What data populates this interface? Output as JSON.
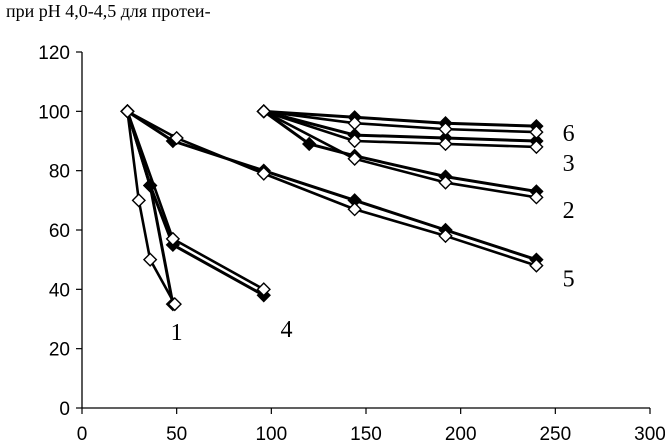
{
  "caption": "при pH  4,0-4,5  для  протеи-",
  "chart_data": {
    "type": "line",
    "title": "",
    "xlabel": "",
    "ylabel": "",
    "xlim": [
      0,
      300
    ],
    "ylim": [
      0,
      120
    ],
    "x_ticks": [
      "0",
      "50",
      "100",
      "150",
      "200",
      "250",
      "300"
    ],
    "y_ticks": [
      "0",
      "20",
      "40",
      "60",
      "80",
      "100",
      "120"
    ],
    "grid": false,
    "legend": "none",
    "marker_colors": {
      "filled": "#000000",
      "open": "#ffffff"
    },
    "series": [
      {
        "label": "1",
        "marker": "filled",
        "x": [
          24,
          36,
          48
        ],
        "y": [
          100,
          75,
          35
        ]
      },
      {
        "label": "1",
        "marker": "open",
        "x": [
          24,
          30,
          36,
          49
        ],
        "y": [
          100,
          70,
          50,
          35
        ]
      },
      {
        "label": "4",
        "marker": "filled",
        "x": [
          24,
          36,
          48,
          96
        ],
        "y": [
          100,
          75,
          55,
          38
        ]
      },
      {
        "label": "4",
        "marker": "open",
        "x": [
          24,
          48,
          96
        ],
        "y": [
          100,
          57,
          40
        ]
      },
      {
        "label": "5",
        "marker": "filled",
        "x": [
          24,
          48,
          96,
          144,
          192,
          240
        ],
        "y": [
          100,
          90,
          80,
          70,
          60,
          50
        ]
      },
      {
        "label": "5",
        "marker": "open",
        "x": [
          24,
          50,
          96,
          144,
          192,
          240
        ],
        "y": [
          100,
          91,
          79,
          67,
          58,
          48
        ]
      },
      {
        "label": "2",
        "marker": "filled",
        "x": [
          96,
          120,
          144,
          192,
          240
        ],
        "y": [
          100,
          89,
          85,
          78,
          73
        ]
      },
      {
        "label": "2",
        "marker": "open",
        "x": [
          96,
          144,
          192,
          240
        ],
        "y": [
          100,
          84,
          76,
          71
        ]
      },
      {
        "label": "3",
        "marker": "filled",
        "x": [
          96,
          144,
          192,
          240
        ],
        "y": [
          100,
          92,
          91,
          90
        ]
      },
      {
        "label": "3",
        "marker": "open",
        "x": [
          96,
          144,
          192,
          240
        ],
        "y": [
          100,
          90,
          89,
          88
        ]
      },
      {
        "label": "6",
        "marker": "filled",
        "x": [
          96,
          144,
          192,
          240
        ],
        "y": [
          100,
          98,
          96,
          95
        ]
      },
      {
        "label": "6",
        "marker": "open",
        "x": [
          96,
          144,
          192,
          240
        ],
        "y": [
          100,
          96,
          94,
          93
        ]
      }
    ],
    "curve_labels": [
      {
        "text": "1",
        "x": 50,
        "y": 26
      },
      {
        "text": "4",
        "x": 108,
        "y": 27
      },
      {
        "text": "5",
        "x": 257,
        "y": 44
      },
      {
        "text": "2",
        "x": 257,
        "y": 67
      },
      {
        "text": "3",
        "x": 257,
        "y": 83
      },
      {
        "text": "6",
        "x": 257,
        "y": 93
      }
    ]
  }
}
